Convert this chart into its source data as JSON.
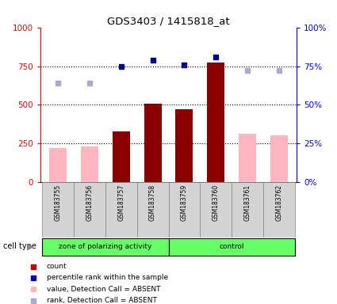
{
  "title": "GDS3403 / 1415818_at",
  "samples": [
    "GSM183755",
    "GSM183756",
    "GSM183757",
    "GSM183758",
    "GSM183759",
    "GSM183760",
    "GSM183761",
    "GSM183762"
  ],
  "group_boundaries": [
    [
      0,
      3,
      "zone of polarizing activity"
    ],
    [
      4,
      7,
      "control"
    ]
  ],
  "count_values": [
    null,
    null,
    330,
    510,
    470,
    775,
    null,
    null
  ],
  "count_absent_values": [
    220,
    230,
    null,
    null,
    null,
    null,
    315,
    305
  ],
  "rank_values": [
    null,
    null,
    75,
    79,
    76,
    81,
    null,
    null
  ],
  "rank_absent_values": [
    64,
    64,
    null,
    null,
    null,
    null,
    72,
    72
  ],
  "ylim_left": [
    0,
    1000
  ],
  "ylim_right": [
    0,
    100
  ],
  "yticks_left": [
    0,
    250,
    500,
    750,
    1000
  ],
  "ytick_labels_left": [
    "0",
    "250",
    "500",
    "750",
    "1000"
  ],
  "yticks_right": [
    0,
    25,
    50,
    75,
    100
  ],
  "ytick_labels_right": [
    "0%",
    "25%",
    "50%",
    "75%",
    "100%"
  ],
  "bar_color_present": "#8B0000",
  "bar_color_absent": "#FFB6C1",
  "dot_color_present": "#00008B",
  "dot_color_absent": "#AAAACC",
  "group_color": "#66FF66",
  "cell_type_label": "cell type",
  "legend_items": [
    "count",
    "percentile rank within the sample",
    "value, Detection Call = ABSENT",
    "rank, Detection Call = ABSENT"
  ],
  "legend_colors": [
    "#CC0000",
    "#0000CC",
    "#FFB6C1",
    "#AAAACC"
  ]
}
